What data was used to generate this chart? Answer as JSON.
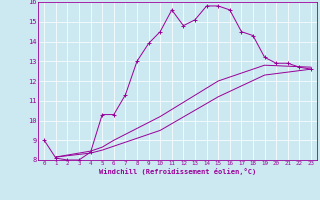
{
  "xlabel": "Windchill (Refroidissement éolien,°C)",
  "bg_color": "#cce8f0",
  "line_color": "#990099",
  "grid_color": "#ffffff",
  "xlim": [
    -0.5,
    23.5
  ],
  "ylim": [
    8,
    16
  ],
  "xticks": [
    0,
    1,
    2,
    3,
    4,
    5,
    6,
    7,
    8,
    9,
    10,
    11,
    12,
    13,
    14,
    15,
    16,
    17,
    18,
    19,
    20,
    21,
    22,
    23
  ],
  "yticks": [
    8,
    9,
    10,
    11,
    12,
    13,
    14,
    15,
    16
  ],
  "line1_x": [
    0,
    1,
    2,
    3,
    4,
    5,
    6,
    7,
    8,
    9,
    10,
    11,
    12,
    13,
    14,
    15,
    16,
    17,
    18,
    19,
    20,
    21,
    22,
    23
  ],
  "line1_y": [
    9.0,
    8.1,
    8.0,
    8.0,
    8.4,
    10.3,
    10.3,
    11.3,
    13.0,
    13.9,
    14.5,
    15.6,
    14.8,
    15.1,
    15.8,
    15.8,
    15.6,
    14.5,
    14.3,
    13.2,
    12.9,
    12.9,
    12.7,
    12.6
  ],
  "line2_x": [
    1,
    4,
    5,
    6,
    10,
    15,
    19,
    23
  ],
  "line2_y": [
    8.15,
    8.35,
    8.5,
    8.7,
    9.5,
    11.2,
    12.3,
    12.6
  ],
  "line3_x": [
    1,
    4,
    5,
    6,
    10,
    15,
    19,
    23
  ],
  "line3_y": [
    8.15,
    8.45,
    8.65,
    9.0,
    10.2,
    12.0,
    12.8,
    12.7
  ],
  "marker": "+"
}
